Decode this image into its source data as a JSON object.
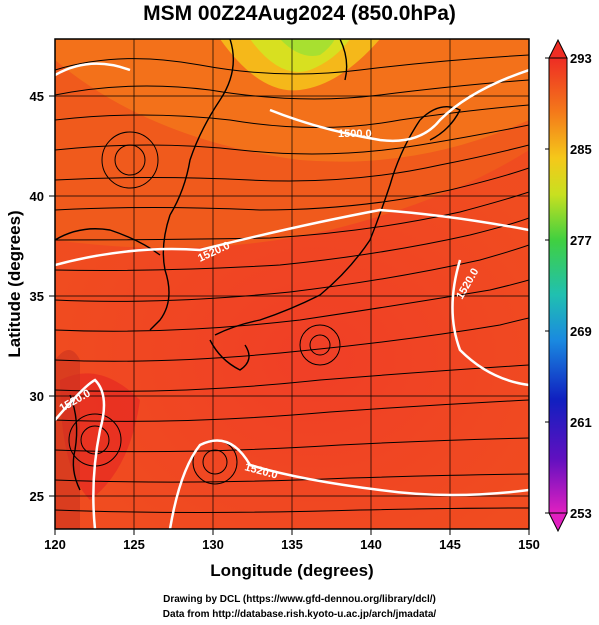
{
  "title": "MSM 00Z24Aug2024 (850.0hPa)",
  "map": {
    "x_axis_title": "Longitude (degrees)",
    "y_axis_title": "Latitude  (degrees)",
    "x_ticks": [
      "120",
      "125",
      "130",
      "135",
      "140",
      "145",
      "150"
    ],
    "y_ticks": [
      "25",
      "30",
      "35",
      "40",
      "45"
    ],
    "contour_labels": [
      "1500.0",
      "1520.0",
      "1520.0",
      "1520.0",
      "1520.0"
    ],
    "colorbar_labels": [
      "293",
      "285",
      "277",
      "269",
      "261",
      "253"
    ]
  },
  "credit": {
    "line1": "Drawing by DCL (https://www.gfd-dennou.org/library/dcl/)",
    "line2": "Data from http://database.rish.kyoto-u.ac.jp/arch/jmadata/"
  },
  "colors": {
    "warm_red": "#ee2d24",
    "orange": "#f46a1a",
    "yellow_green": "#c8e020",
    "contour": "#ffffff"
  }
}
